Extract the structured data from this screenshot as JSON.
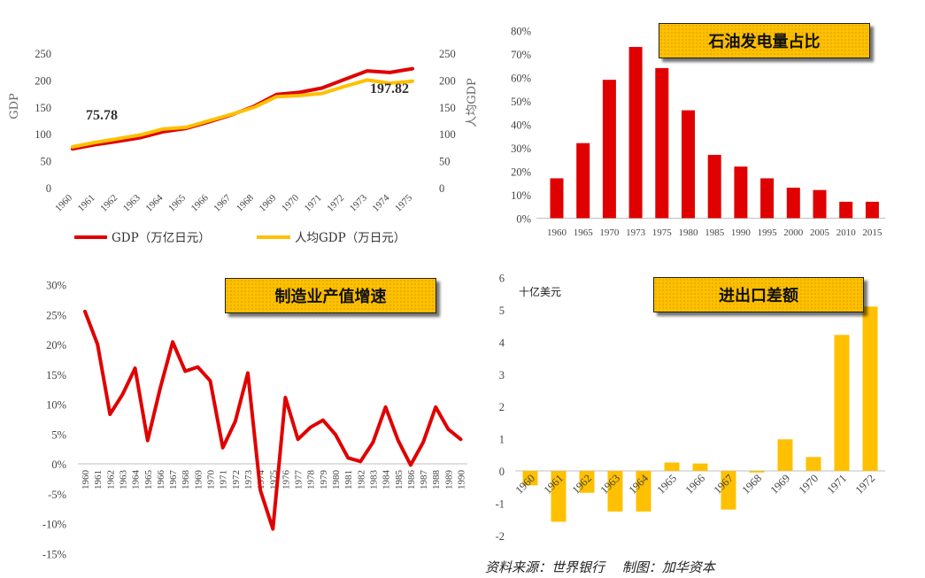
{
  "chart_data": [
    {
      "type": "line",
      "title": "",
      "categories": [
        "1960",
        "1961",
        "1962",
        "1963",
        "1964",
        "1965",
        "1966",
        "1967",
        "1968",
        "1969",
        "1970",
        "1971",
        "1972",
        "1973",
        "1974",
        "1975"
      ],
      "series": [
        {
          "name": "GDP（万亿日元）",
          "color": "#e00000",
          "values": [
            72,
            80,
            86,
            93,
            104,
            110,
            122,
            135,
            151,
            173,
            177,
            185,
            201,
            217,
            214,
            221
          ]
        },
        {
          "name": "人均GDP（万日元）",
          "color": "#ffc000",
          "values": [
            75.78,
            84,
            91,
            98,
            109,
            112,
            124,
            136,
            149,
            169,
            171,
            175,
            188,
            200,
            194,
            197.82
          ]
        }
      ],
      "ylabel_left": "GDP",
      "ylabel_right": "人均GDP",
      "ylim": [
        0,
        250
      ],
      "yticks": [
        0,
        50,
        100,
        150,
        200,
        250
      ],
      "annotations": [
        {
          "text": "75.78"
        },
        {
          "text": "197.82"
        }
      ]
    },
    {
      "type": "bar",
      "title": "石油发电量占比",
      "categories": [
        "1960",
        "1965",
        "1970",
        "1973",
        "1975",
        "1980",
        "1985",
        "1990",
        "1995",
        "2000",
        "2005",
        "2010",
        "2015"
      ],
      "values": [
        0.17,
        0.32,
        0.59,
        0.73,
        0.64,
        0.46,
        0.27,
        0.22,
        0.17,
        0.13,
        0.12,
        0.07,
        0.07
      ],
      "color": "#e00000",
      "ylim": [
        0,
        0.8
      ],
      "ytick_labels": [
        "0%",
        "10%",
        "20%",
        "30%",
        "40%",
        "50%",
        "60%",
        "70%",
        "80%"
      ]
    },
    {
      "type": "line",
      "title": "制造业产值增速",
      "categories": [
        "1960",
        "1961",
        "1962",
        "1963",
        "1964",
        "1965",
        "1966",
        "1967",
        "1968",
        "1969",
        "1970",
        "1971",
        "1972",
        "1973",
        "1974",
        "1975",
        "1976",
        "1977",
        "1978",
        "1979",
        "1980",
        "1981",
        "1982",
        "1983",
        "1984",
        "1985",
        "1986",
        "1987",
        "1988",
        "1989",
        "1990"
      ],
      "values": [
        0.255,
        0.2,
        0.083,
        0.116,
        0.16,
        0.039,
        0.126,
        0.204,
        0.155,
        0.162,
        0.139,
        0.027,
        0.071,
        0.152,
        -0.044,
        -0.109,
        0.111,
        0.041,
        0.061,
        0.073,
        0.049,
        0.01,
        0.004,
        0.036,
        0.095,
        0.039,
        -0.002,
        0.036,
        0.095,
        0.058,
        0.041
      ],
      "color": "#e00000",
      "ylim": [
        -0.15,
        0.3
      ],
      "ytick_labels": [
        "-15%",
        "-10%",
        "-5%",
        "0%",
        "5%",
        "10%",
        "15%",
        "20%",
        "25%",
        "30%"
      ]
    },
    {
      "type": "bar",
      "title": "进出口差额",
      "unit": "十亿美元",
      "categories": [
        "1960",
        "1961",
        "1962",
        "1963",
        "1964",
        "1965",
        "1966",
        "1967",
        "1968",
        "1969",
        "1970",
        "1971",
        "1972"
      ],
      "values": [
        -0.45,
        -1.58,
        -0.68,
        -1.26,
        -1.26,
        0.26,
        0.23,
        -1.2,
        -0.05,
        0.98,
        0.43,
        4.22,
        5.1
      ],
      "color": "#ffc000",
      "ylim": [
        -2,
        6
      ],
      "ytick_labels": [
        "-2",
        "-1",
        "0",
        "1",
        "2",
        "3",
        "4",
        "5",
        "6"
      ]
    }
  ],
  "source": "资料来源：世界银行　 制图：加华资本"
}
